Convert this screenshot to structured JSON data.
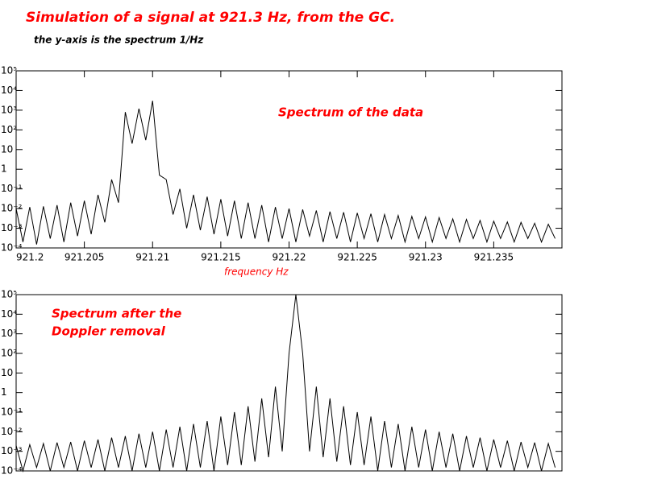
{
  "header": {
    "title": "Simulation of a signal at 921.3 Hz, from the GC.",
    "subtitle": "the y-axis is the spectrum 1/Hz"
  },
  "chart_data": [
    {
      "type": "line",
      "annotation": [
        "Spectrum of the data"
      ],
      "xlabel": "frequency  Hz",
      "color": "#000000",
      "annotation_color": "#ff0000",
      "yscale": "log",
      "grid": false,
      "xlim": [
        921.2,
        921.24
      ],
      "xticks": [
        921.2,
        921.205,
        921.21,
        921.215,
        921.22,
        921.225,
        921.23,
        921.235
      ],
      "ylim": [
        0.0001,
        100000
      ],
      "yticks": [
        {
          "value": 0.0001,
          "label": "10⁻⁴"
        },
        {
          "value": 0.001,
          "label": "10⁻³"
        },
        {
          "value": 0.01,
          "label": "10⁻²"
        },
        {
          "value": 0.1,
          "label": "10⁻¹"
        },
        1,
        10,
        {
          "value": 100,
          "label": "10²"
        },
        {
          "value": 1000,
          "label": "10³"
        },
        {
          "value": 10000,
          "label": "10⁴"
        },
        {
          "value": 100000,
          "label": "10⁵"
        }
      ],
      "x": [
        921.2,
        921.2005,
        921.201,
        921.2015,
        921.202,
        921.2025,
        921.203,
        921.2035,
        921.204,
        921.2045,
        921.205,
        921.2055,
        921.206,
        921.2065,
        921.207,
        921.2075,
        921.208,
        921.2085,
        921.209,
        921.2095,
        921.21,
        921.2105,
        921.211,
        921.2115,
        921.212,
        921.2125,
        921.213,
        921.2135,
        921.214,
        921.2145,
        921.215,
        921.2155,
        921.216,
        921.2165,
        921.217,
        921.2175,
        921.218,
        921.2185,
        921.219,
        921.2195,
        921.22,
        921.2205,
        921.221,
        921.2215,
        921.222,
        921.2225,
        921.223,
        921.2235,
        921.224,
        921.2245,
        921.225,
        921.2255,
        921.226,
        921.2265,
        921.227,
        921.2275,
        921.228,
        921.2285,
        921.229,
        921.2295,
        921.23,
        921.2305,
        921.231,
        921.2315,
        921.232,
        921.2325,
        921.233,
        921.2335,
        921.234,
        921.2345,
        921.235,
        921.2355,
        921.236,
        921.2365,
        921.237,
        921.2375,
        921.238,
        921.2385,
        921.239,
        921.2395
      ],
      "values": [
        0.01,
        0.0002,
        0.012,
        0.00015,
        0.013,
        0.0003,
        0.015,
        0.0002,
        0.02,
        0.0004,
        0.025,
        0.0005,
        0.05,
        0.002,
        0.3,
        0.02,
        800,
        20,
        1200,
        30,
        3000,
        0.5,
        0.3,
        0.005,
        0.1,
        0.001,
        0.05,
        0.0008,
        0.04,
        0.0005,
        0.03,
        0.0004,
        0.025,
        0.0003,
        0.02,
        0.0003,
        0.015,
        0.0002,
        0.012,
        0.0003,
        0.01,
        0.0002,
        0.009,
        0.0004,
        0.008,
        0.0002,
        0.007,
        0.0003,
        0.0065,
        0.0002,
        0.006,
        0.0003,
        0.0055,
        0.0002,
        0.005,
        0.0003,
        0.0045,
        0.0002,
        0.004,
        0.0003,
        0.0038,
        0.0002,
        0.0035,
        0.0003,
        0.003,
        0.0002,
        0.0028,
        0.0003,
        0.0025,
        0.0002,
        0.0023,
        0.0003,
        0.0021,
        0.0002,
        0.002,
        0.0003,
        0.0018,
        0.0002,
        0.0016,
        0.0003
      ]
    },
    {
      "type": "line",
      "annotation": [
        "Spectrum after the",
        "Doppler removal"
      ],
      "color": "#000000",
      "annotation_color": "#ff0000",
      "yscale": "log",
      "grid": false,
      "xlim": [
        921.2,
        921.24
      ],
      "ylim": [
        0.0001,
        100000
      ],
      "yticks": [
        {
          "value": 0.0001,
          "label": "10⁻⁴"
        },
        {
          "value": 0.001,
          "label": "10⁻³"
        },
        {
          "value": 0.01,
          "label": "10⁻²"
        },
        {
          "value": 0.1,
          "label": "10⁻¹"
        },
        1,
        10,
        {
          "value": 100,
          "label": "10²"
        },
        {
          "value": 1000,
          "label": "10³"
        },
        {
          "value": 10000,
          "label": "10⁴"
        },
        {
          "value": 100000,
          "label": "10⁵"
        }
      ],
      "x": [
        921.2,
        921.2005,
        921.201,
        921.2015,
        921.202,
        921.2025,
        921.203,
        921.2035,
        921.204,
        921.2045,
        921.205,
        921.2055,
        921.206,
        921.2065,
        921.207,
        921.2075,
        921.208,
        921.2085,
        921.209,
        921.2095,
        921.21,
        921.2105,
        921.211,
        921.2115,
        921.212,
        921.2125,
        921.213,
        921.2135,
        921.214,
        921.2145,
        921.215,
        921.2155,
        921.216,
        921.2165,
        921.217,
        921.2175,
        921.218,
        921.2185,
        921.219,
        921.2195,
        921.22,
        921.2205,
        921.221,
        921.2215,
        921.222,
        921.2225,
        921.223,
        921.2235,
        921.224,
        921.2245,
        921.225,
        921.2255,
        921.226,
        921.2265,
        921.227,
        921.2275,
        921.228,
        921.2285,
        921.229,
        921.2295,
        921.23,
        921.2305,
        921.231,
        921.2315,
        921.232,
        921.2325,
        921.233,
        921.2335,
        921.234,
        921.2345,
        921.235,
        921.2355,
        921.236,
        921.2365,
        921.237,
        921.2375,
        921.238,
        921.2385,
        921.239,
        921.2395
      ],
      "values": [
        0.002,
        0.0001,
        0.0022,
        0.00015,
        0.0025,
        0.0001,
        0.0028,
        0.00015,
        0.003,
        0.0001,
        0.0035,
        0.00015,
        0.004,
        0.0001,
        0.005,
        0.00015,
        0.006,
        0.0001,
        0.008,
        0.00015,
        0.01,
        0.0001,
        0.013,
        0.00015,
        0.018,
        0.0001,
        0.025,
        0.00015,
        0.035,
        0.0001,
        0.06,
        0.0002,
        0.1,
        0.0002,
        0.2,
        0.0003,
        0.5,
        0.0005,
        2,
        0.001,
        100,
        100000,
        100,
        0.001,
        2,
        0.0005,
        0.5,
        0.0003,
        0.2,
        0.0002,
        0.1,
        0.0002,
        0.06,
        0.0001,
        0.035,
        0.00015,
        0.025,
        0.0001,
        0.018,
        0.00015,
        0.013,
        0.0001,
        0.01,
        0.00015,
        0.008,
        0.0001,
        0.006,
        0.00015,
        0.005,
        0.0001,
        0.004,
        0.00015,
        0.0035,
        0.0001,
        0.003,
        0.00015,
        0.0028,
        0.0001,
        0.0025,
        0.00015
      ]
    }
  ]
}
